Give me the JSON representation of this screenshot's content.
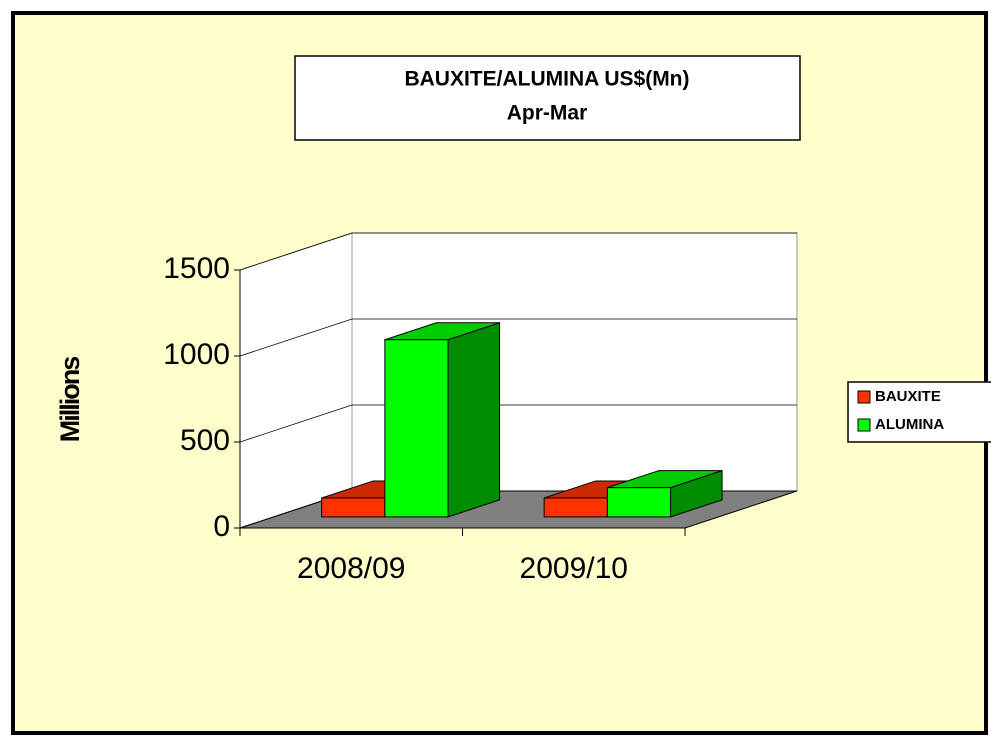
{
  "chart_data": {
    "type": "bar3d",
    "title": "BAUXITE/ALUMINA US$(Mn)",
    "subtitle": "Apr-Mar",
    "ylabel": "Millions",
    "categories": [
      "2008/09",
      "2009/10"
    ],
    "series": [
      {
        "name": "BAUXITE",
        "color": "#ff3300",
        "values": [
          110,
          110
        ]
      },
      {
        "name": "ALUMINA",
        "color": "#00ff00",
        "values": [
          1030,
          170
        ]
      }
    ],
    "ylim": [
      0,
      1500
    ],
    "yticks": [
      0,
      500,
      1000,
      1500
    ],
    "grid": true,
    "legend": "right"
  }
}
